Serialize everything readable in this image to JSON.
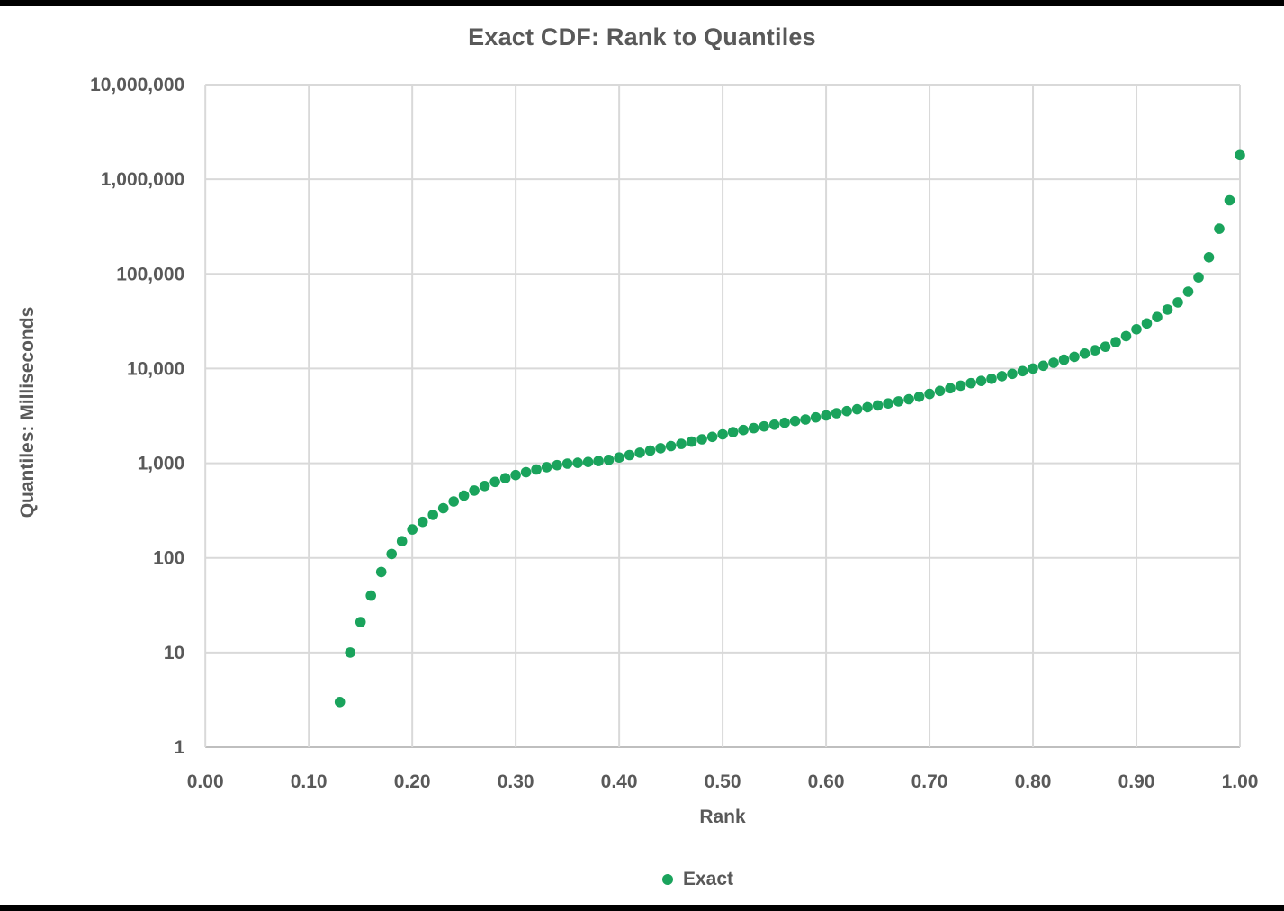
{
  "colors": {
    "series_green": "#1AA35C",
    "text_gray": "#595959",
    "gridline_gray": "#D9D9D9",
    "axis_line_gray": "#BFBFBF",
    "edge_black": "#000000"
  },
  "chart_data": {
    "type": "scatter",
    "title": "Exact CDF: Rank to Quantiles",
    "xlabel": "Rank",
    "ylabel": "Quantiles: Milliseconds",
    "y_scale": "log10",
    "xlim": [
      0.0,
      1.0
    ],
    "ylim": [
      1,
      10000000
    ],
    "grid": true,
    "x_ticks": [
      "0.00",
      "0.10",
      "0.20",
      "0.30",
      "0.40",
      "0.50",
      "0.60",
      "0.70",
      "0.80",
      "0.90",
      "1.00"
    ],
    "y_ticks": [
      "1",
      "10",
      "100",
      "1,000",
      "10,000",
      "100,000",
      "1,000,000",
      "10,000,000"
    ],
    "legend": {
      "position": "bottom",
      "entries": [
        "Exact"
      ]
    },
    "series": [
      {
        "name": "Exact",
        "color": "#1AA35C",
        "x": [
          0.13,
          0.14,
          0.15,
          0.16,
          0.17,
          0.18,
          0.19,
          0.2,
          0.21,
          0.22,
          0.23,
          0.24,
          0.25,
          0.26,
          0.27,
          0.28,
          0.29,
          0.3,
          0.31,
          0.32,
          0.33,
          0.34,
          0.35,
          0.36,
          0.37,
          0.38,
          0.39,
          0.4,
          0.41,
          0.42,
          0.43,
          0.44,
          0.45,
          0.46,
          0.47,
          0.48,
          0.49,
          0.5,
          0.51,
          0.52,
          0.53,
          0.54,
          0.55,
          0.56,
          0.57,
          0.58,
          0.59,
          0.6,
          0.61,
          0.62,
          0.63,
          0.64,
          0.65,
          0.66,
          0.67,
          0.68,
          0.69,
          0.7,
          0.71,
          0.72,
          0.73,
          0.74,
          0.75,
          0.76,
          0.77,
          0.78,
          0.79,
          0.8,
          0.81,
          0.82,
          0.83,
          0.84,
          0.85,
          0.86,
          0.87,
          0.88,
          0.89,
          0.9,
          0.91,
          0.92,
          0.93,
          0.94,
          0.95,
          0.96,
          0.97,
          0.98,
          0.99,
          1.0
        ],
        "y": [
          3,
          10,
          21,
          40,
          71,
          110,
          150,
          200,
          240,
          285,
          335,
          395,
          455,
          515,
          575,
          635,
          695,
          750,
          805,
          860,
          910,
          955,
          990,
          1010,
          1030,
          1055,
          1085,
          1150,
          1220,
          1290,
          1360,
          1440,
          1520,
          1600,
          1690,
          1790,
          1900,
          2020,
          2130,
          2240,
          2350,
          2450,
          2550,
          2670,
          2790,
          2900,
          3050,
          3200,
          3380,
          3550,
          3720,
          3900,
          4080,
          4280,
          4500,
          4740,
          5030,
          5400,
          5800,
          6200,
          6600,
          7000,
          7400,
          7800,
          8300,
          8800,
          9400,
          10000,
          10700,
          11500,
          12400,
          13300,
          14400,
          15600,
          17000,
          19000,
          22000,
          26000,
          30000,
          35000,
          42000,
          50000,
          65000,
          92000,
          150000,
          300000,
          600000,
          1800000
        ]
      }
    ]
  }
}
